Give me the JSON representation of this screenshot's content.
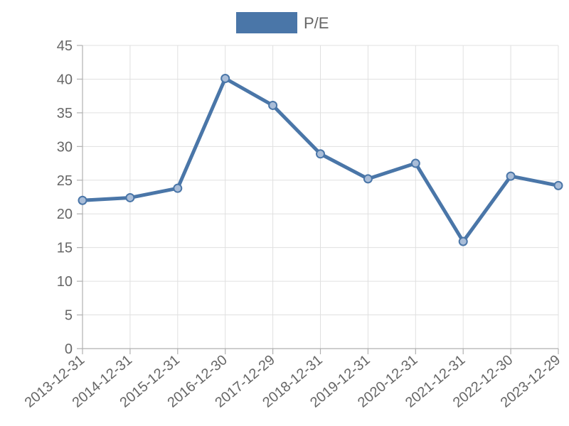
{
  "chart_data": {
    "type": "line",
    "categories": [
      "2013-12-31",
      "2014-12-31",
      "2015-12-31",
      "2016-12-30",
      "2017-12-29",
      "2018-12-31",
      "2019-12-31",
      "2020-12-31",
      "2021-12-31",
      "2022-12-30",
      "2023-12-29"
    ],
    "series": [
      {
        "name": "P/E",
        "values": [
          22.0,
          22.4,
          23.8,
          40.1,
          36.1,
          28.9,
          25.2,
          27.5,
          15.9,
          25.6,
          24.2
        ],
        "color": "#4a76a8"
      }
    ],
    "y_ticks": [
      0,
      5,
      10,
      15,
      20,
      25,
      30,
      35,
      40,
      45
    ],
    "ylim": [
      0,
      45
    ],
    "grid": true,
    "legend": "top-center"
  }
}
